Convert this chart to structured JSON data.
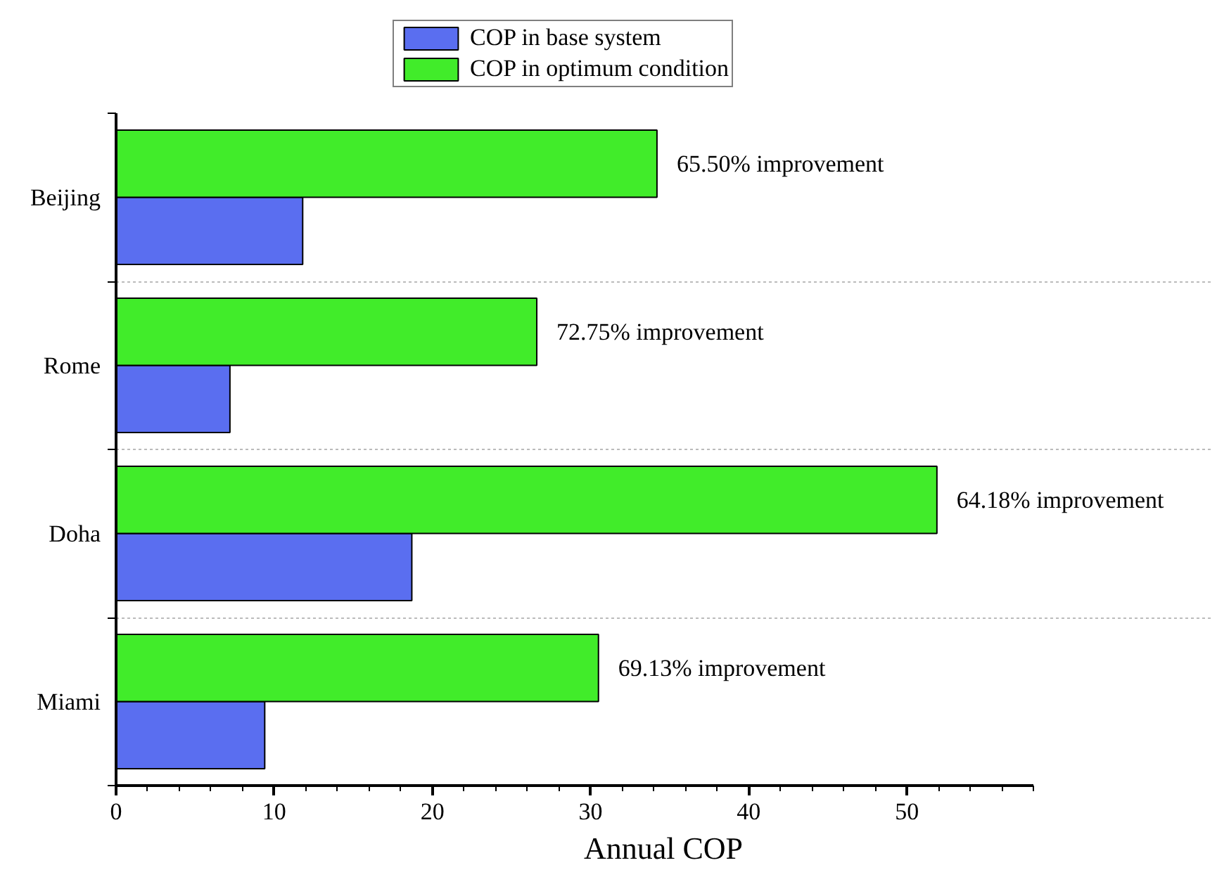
{
  "chart_data": {
    "type": "bar",
    "orientation": "horizontal",
    "xlabel": "Annual COP",
    "categories": [
      "Beijing",
      "Rome",
      "Doha",
      "Miami"
    ],
    "series": [
      {
        "name": "COP in base system",
        "color": "#5a6ef0",
        "values": [
          11.8,
          7.2,
          18.7,
          9.4
        ]
      },
      {
        "name": "COP in optimum condition",
        "color": "#41ec2a",
        "values": [
          34.2,
          26.6,
          51.9,
          30.5
        ]
      }
    ],
    "xlim": [
      0,
      58
    ],
    "xticks": [
      0,
      10,
      20,
      30,
      40,
      50
    ],
    "grid": "y",
    "legend": "top",
    "annotations": [
      {
        "text": "65.50% improvement",
        "x": 34.2,
        "y": "Beijing"
      },
      {
        "text": "72.75%  improvement",
        "x": 26.6,
        "y": "Rome"
      },
      {
        "text": "64.18%  improvement",
        "x": 51.9,
        "y": "Doha"
      },
      {
        "text": "69.13%  improvement",
        "x": 30.5,
        "y": "Miami"
      }
    ]
  }
}
